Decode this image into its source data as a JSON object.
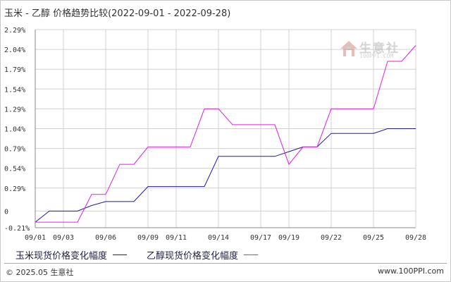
{
  "title": "玉米 - 乙醇 价格趋势比较(2022-09-01 - 2022-09-28)",
  "watermark": {
    "text": "生意社",
    "url": "100PPI.COM"
  },
  "footer": {
    "copyright": "© 2025.05 生意社",
    "site": "www.100PPI.com"
  },
  "colors": {
    "corn": "#1a1ab4",
    "ethanol": "#e21ee2",
    "grid": "#d0d0d0",
    "axis": "#888888"
  },
  "chart_data": {
    "type": "line",
    "xlabel": "",
    "ylabel": "",
    "x_ticks": [
      "09/01",
      "09/03",
      "09/06",
      "09/09",
      "09/11",
      "09/14",
      "09/17",
      "09/19",
      "09/22",
      "09/25",
      "09/28"
    ],
    "y_ticks": [
      "2.29%",
      "2.04%",
      "1.79%",
      "1.54%",
      "1.29%",
      "1.04%",
      "0.79%",
      "0.54%",
      "0.29%",
      "0",
      "-0.21%"
    ],
    "ylim": [
      -0.21,
      2.29
    ],
    "grid": true,
    "x": [
      "09/01",
      "09/02",
      "09/03",
      "09/04",
      "09/05",
      "09/06",
      "09/07",
      "09/08",
      "09/09",
      "09/10",
      "09/11",
      "09/12",
      "09/13",
      "09/14",
      "09/15",
      "09/16",
      "09/17",
      "09/18",
      "09/19",
      "09/20",
      "09/21",
      "09/22",
      "09/23",
      "09/24",
      "09/25",
      "09/26",
      "09/27",
      "09/28"
    ],
    "series": [
      {
        "name": "玉米现货价格变化幅度",
        "values": [
          -0.14,
          0.0,
          0.0,
          0.0,
          0.07,
          0.12,
          0.12,
          0.12,
          0.31,
          0.31,
          0.31,
          0.31,
          0.31,
          0.69,
          0.69,
          0.69,
          0.69,
          0.69,
          0.75,
          0.81,
          0.81,
          0.98,
          0.98,
          0.98,
          0.98,
          1.04,
          1.04,
          1.04
        ]
      },
      {
        "name": "乙醇现货价格变化幅度",
        "values": [
          -0.14,
          -0.14,
          -0.14,
          -0.14,
          0.21,
          0.21,
          0.59,
          0.59,
          0.81,
          0.81,
          0.81,
          0.81,
          1.29,
          1.29,
          1.09,
          1.09,
          1.09,
          1.09,
          0.59,
          0.81,
          0.81,
          1.29,
          1.29,
          1.29,
          1.29,
          1.89,
          1.89,
          2.09
        ]
      }
    ]
  }
}
